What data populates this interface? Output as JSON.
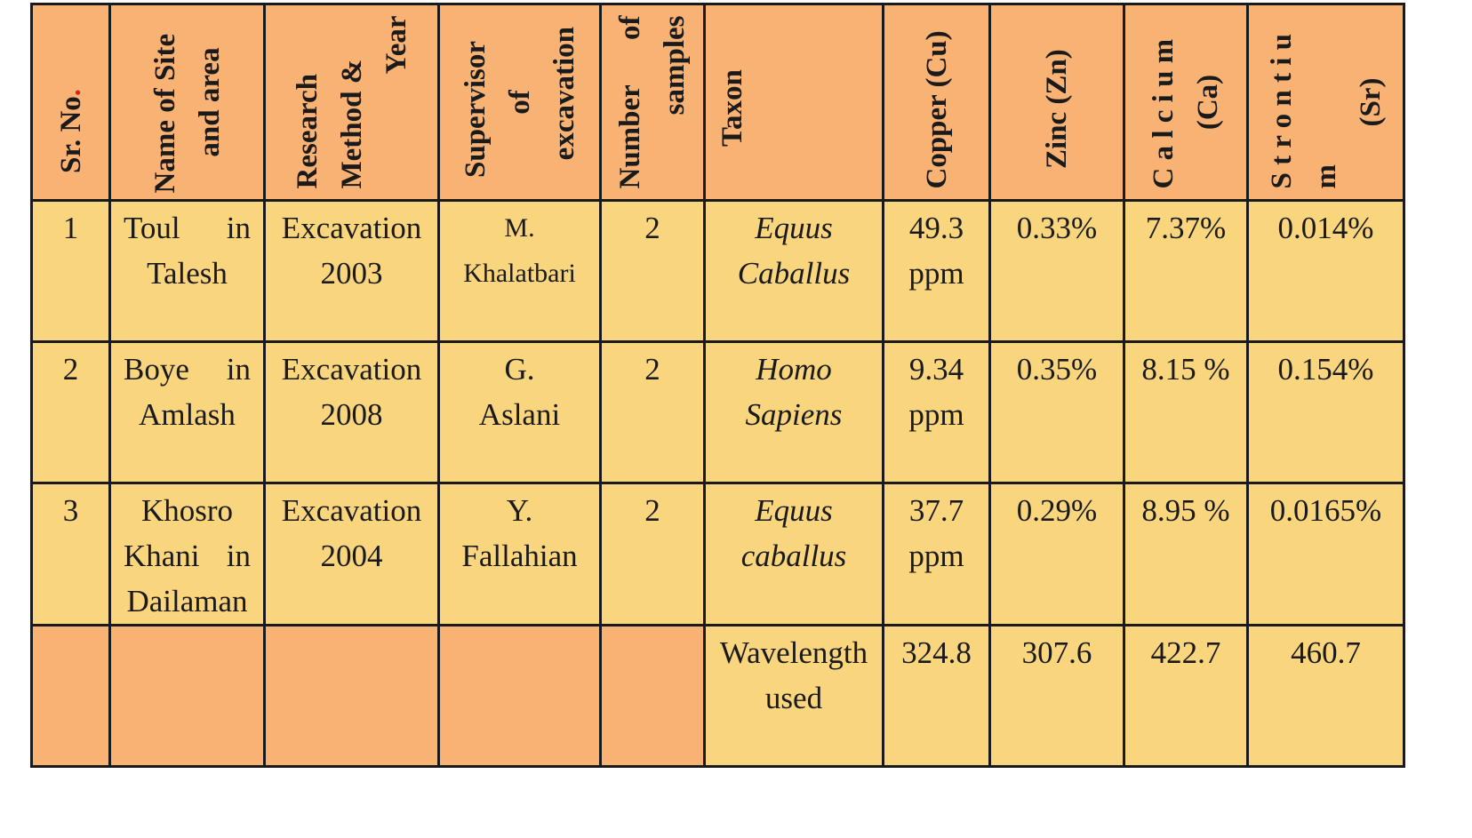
{
  "table": {
    "headers": {
      "sr_no": "Sr. No",
      "sr_no_dot": ".",
      "site_l1": "Name of Site",
      "site_l2": "and area",
      "method_l1": "Research",
      "method_l2": "Method &",
      "method_l3": "Year",
      "supervisor_l1": "Supervisor",
      "supervisor_l2": "of",
      "supervisor_l3": "excavation",
      "samples_l1": "Number of",
      "samples_l2": "samples",
      "taxon": "Taxon",
      "copper": "Copper (Cu)",
      "zinc": "Zinc (Zn)",
      "calcium_l1": "C a l c i u m",
      "calcium_l2": "(Ca)",
      "strontium_l1": "S t r o n t i u m",
      "strontium_l2": "(Sr)"
    },
    "rows": [
      {
        "sr": "1",
        "site": [
          "Toul in",
          "Talesh"
        ],
        "method": [
          "Excavation",
          "2003"
        ],
        "supervisor": [
          "M.",
          "Khalatbari"
        ],
        "samples": "2",
        "taxon": [
          "Equus",
          "Caballus"
        ],
        "copper": [
          "49.3",
          "ppm"
        ],
        "zinc": "0.33%",
        "calcium": "7.37%",
        "strontium": "0.014%"
      },
      {
        "sr": "2",
        "site": [
          "Boye in",
          "Amlash"
        ],
        "method": [
          "Excavation",
          "2008"
        ],
        "supervisor": [
          "G.",
          "Aslani"
        ],
        "samples": "2",
        "taxon": [
          "Homo",
          "Sapiens"
        ],
        "copper": [
          "9.34",
          "ppm"
        ],
        "zinc": "0.35%",
        "calcium": "8.15 %",
        "strontium": "0.154%"
      },
      {
        "sr": "3",
        "site": [
          "Khosro",
          "Khani in",
          "Dailaman"
        ],
        "method": [
          "Excavation",
          "2004"
        ],
        "supervisor": [
          "Y.",
          "Fallahian"
        ],
        "samples": "2",
        "taxon": [
          "Equus",
          "caballus"
        ],
        "copper": [
          "37.7",
          "ppm"
        ],
        "zinc": "0.29%",
        "calcium": "8.95 %",
        "strontium": "0.0165%"
      }
    ],
    "wavelength": {
      "label": [
        "Wavelength",
        "used"
      ],
      "copper": "324.8",
      "zinc": "307.6",
      "calcium": "422.7",
      "strontium": "460.7"
    }
  },
  "colors": {
    "header_bg": "#f8b274",
    "cell_bg": "#f9d57e",
    "border": "#1a1a1a",
    "accent_dot": "#e0201e"
  }
}
